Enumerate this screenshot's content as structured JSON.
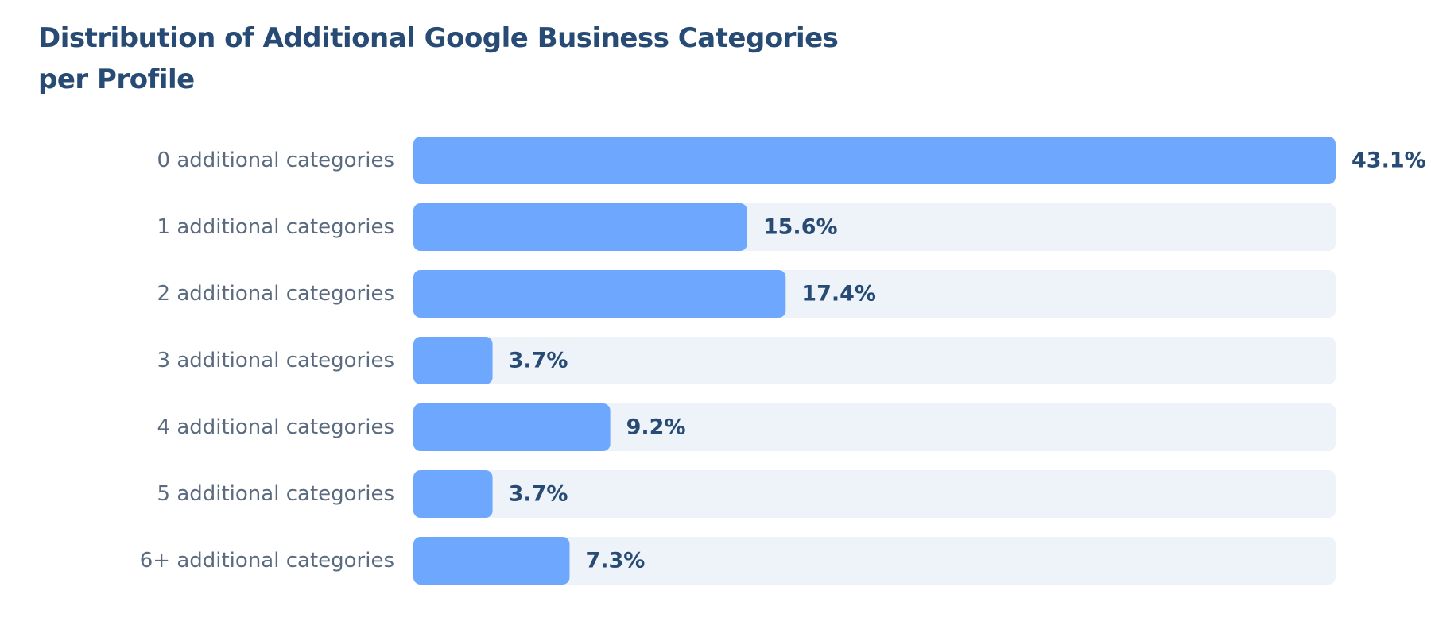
{
  "chart_data": {
    "type": "bar",
    "orientation": "horizontal",
    "title": "Distribution of Additional Google Business Categories per Profile",
    "categories": [
      "0 additional categories",
      "1 additional categories",
      "2 additional categories",
      "3 additional categories",
      "4 additional categories",
      "5 additional categories",
      "6+ additional categories"
    ],
    "values": [
      43.1,
      15.6,
      17.4,
      3.7,
      9.2,
      3.7,
      7.3
    ],
    "value_labels": [
      "43.1%",
      "15.6%",
      "17.4%",
      "3.7%",
      "9.2%",
      "3.7%",
      "7.3%"
    ],
    "xlim": [
      0,
      43.1
    ],
    "grid": false,
    "legend": "none",
    "colors": {
      "bar": "#6ea8fe",
      "track": "#eef3fa",
      "title": "#274b74",
      "value_text": "#274b74",
      "label_text": "#5b6b7f"
    }
  }
}
